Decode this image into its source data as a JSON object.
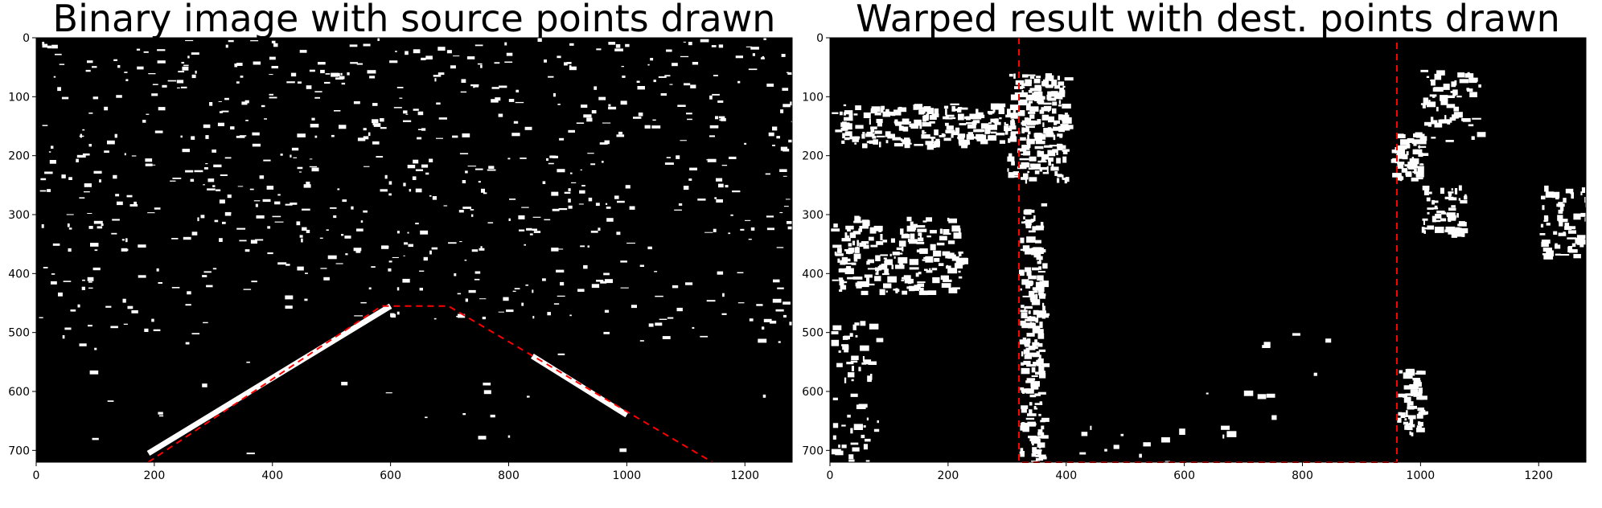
{
  "chart_data": [
    {
      "type": "image",
      "title": "Binary image with source points drawn",
      "xlim": [
        0,
        1280
      ],
      "ylim": [
        0,
        720
      ],
      "x_ticks": [
        0,
        200,
        400,
        600,
        800,
        1000,
        1200
      ],
      "y_ticks": [
        0,
        100,
        200,
        300,
        400,
        500,
        600,
        700
      ],
      "x_tick_labels": [
        "0",
        "200",
        "400",
        "600",
        "800",
        "1000",
        "1200"
      ],
      "y_tick_labels": [
        "0",
        "100",
        "200",
        "300",
        "400",
        "500",
        "600",
        "700"
      ],
      "overlay": {
        "color": "#ff0000",
        "style": "dashed",
        "points": [
          [
            190,
            720
          ],
          [
            585,
            455
          ],
          [
            698,
            455
          ],
          [
            1145,
            720
          ]
        ]
      },
      "regions": {
        "background": "#000000",
        "noise": "#ffffff",
        "lane_lines": [
          {
            "points": [
              [
                190,
                705
              ],
              [
                600,
                455
              ]
            ]
          },
          {
            "points": [
              [
                840,
                540
              ],
              [
                1000,
                640
              ]
            ]
          }
        ]
      }
    },
    {
      "type": "image",
      "title": "Warped result with dest. points drawn",
      "xlim": [
        0,
        1280
      ],
      "ylim": [
        0,
        720
      ],
      "x_ticks": [
        0,
        200,
        400,
        600,
        800,
        1000,
        1200
      ],
      "y_ticks": [
        0,
        100,
        200,
        300,
        400,
        500,
        600,
        700
      ],
      "x_tick_labels": [
        "0",
        "200",
        "400",
        "600",
        "800",
        "1000",
        "1200"
      ],
      "y_tick_labels": [
        "0",
        "100",
        "200",
        "300",
        "400",
        "500",
        "600",
        "700"
      ],
      "overlay": {
        "color": "#ff0000",
        "style": "dashed",
        "points": [
          [
            320,
            0
          ],
          [
            320,
            720
          ],
          [
            960,
            720
          ],
          [
            960,
            0
          ]
        ]
      },
      "regions": {
        "background": "#000000",
        "noise": "#ffffff"
      }
    }
  ]
}
